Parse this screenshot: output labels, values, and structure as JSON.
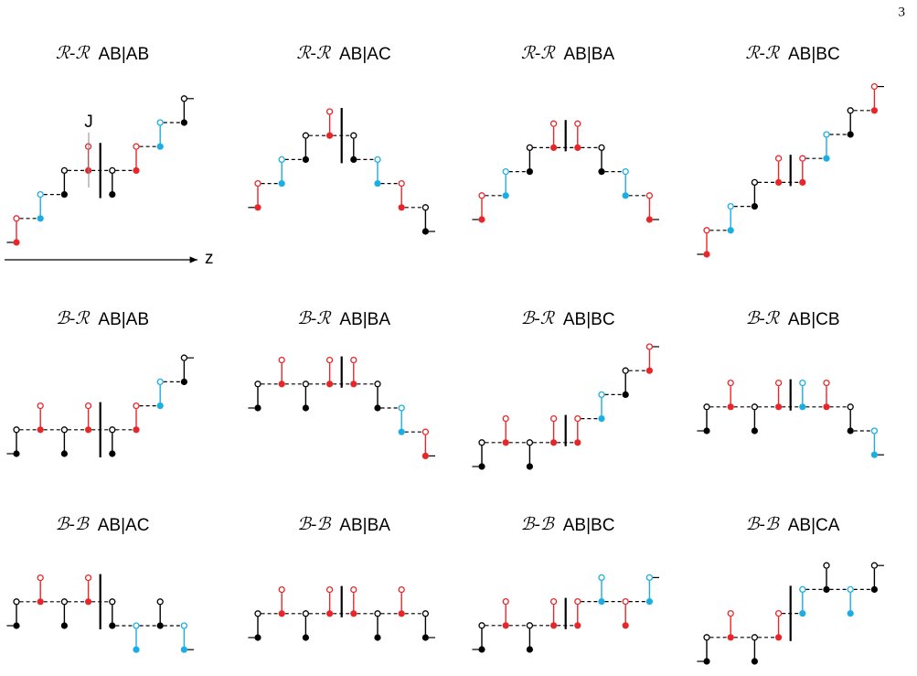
{
  "page_number": "3",
  "panels": [
    {
      "prefix": "ℛ-ℛ",
      "label": "AB|AB"
    },
    {
      "prefix": "ℛ-ℛ",
      "label": "AB|AC"
    },
    {
      "prefix": "ℛ-ℛ",
      "label": "AB|BA"
    },
    {
      "prefix": "ℛ-ℛ",
      "label": "AB|BC"
    },
    {
      "prefix": "ℬ-ℛ",
      "label": "AB|AB"
    },
    {
      "prefix": "ℬ-ℛ",
      "label": "AB|BA"
    },
    {
      "prefix": "ℬ-ℛ",
      "label": "AB|BC"
    },
    {
      "prefix": "ℬ-ℛ",
      "label": "AB|CB"
    },
    {
      "prefix": "ℬ-ℬ",
      "label": "AB|AC"
    },
    {
      "prefix": "ℬ-ℬ",
      "label": "AB|BA"
    },
    {
      "prefix": "ℬ-ℬ",
      "label": "AB|BC"
    },
    {
      "prefix": "ℬ-ℬ",
      "label": "AB|CA"
    }
  ],
  "annotations": {
    "j": "J",
    "z": "z"
  }
}
